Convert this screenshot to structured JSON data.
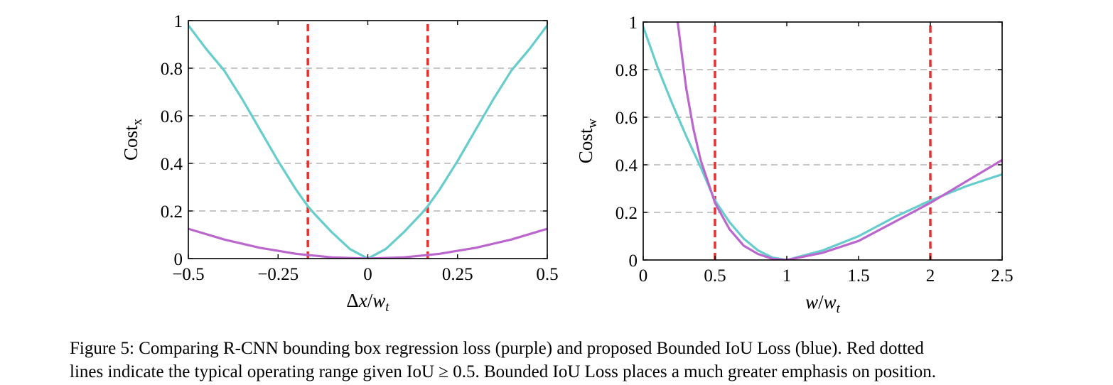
{
  "chart_data": [
    {
      "type": "line",
      "xlabel": "Δx/w_t",
      "ylabel": "Cost_x",
      "xlim": [
        -0.5,
        0.5
      ],
      "ylim": [
        0,
        1
      ],
      "x_ticks": [
        -0.5,
        -0.25,
        0,
        0.25,
        0.5
      ],
      "x_tick_labels": [
        "−0.5",
        "−0.25",
        "0",
        "0.25",
        "0.5"
      ],
      "y_ticks": [
        0,
        0.2,
        0.4,
        0.6,
        0.8,
        1
      ],
      "y_tick_labels": [
        "0",
        "0.2",
        "0.4",
        "0.6",
        "0.8",
        "1"
      ],
      "grid": "horizontal dashed",
      "series": [
        {
          "color": "#66cccc",
          "x": [
            -0.5,
            -0.45,
            -0.4,
            -0.35,
            -0.3,
            -0.25,
            -0.2,
            -0.167,
            -0.15,
            -0.1,
            -0.05,
            0,
            0.05,
            0.1,
            0.15,
            0.167,
            0.2,
            0.25,
            0.3,
            0.35,
            0.4,
            0.45,
            0.5
          ],
          "y": [
            0.98,
            0.88,
            0.79,
            0.67,
            0.54,
            0.41,
            0.29,
            0.22,
            0.19,
            0.11,
            0.04,
            0.0,
            0.04,
            0.11,
            0.19,
            0.22,
            0.29,
            0.41,
            0.54,
            0.67,
            0.79,
            0.88,
            0.98
          ]
        },
        {
          "color": "#bb66cc",
          "x": [
            -0.5,
            -0.4,
            -0.3,
            -0.2,
            -0.1,
            0,
            0.1,
            0.2,
            0.3,
            0.4,
            0.5
          ],
          "y": [
            0.125,
            0.08,
            0.045,
            0.02,
            0.005,
            0.0,
            0.005,
            0.02,
            0.045,
            0.08,
            0.125
          ]
        }
      ],
      "reference_lines": [
        {
          "axis": "x",
          "value": -0.167,
          "color": "#e8302e",
          "style": "dotted"
        },
        {
          "axis": "x",
          "value": 0.167,
          "color": "#e8302e",
          "style": "dotted"
        }
      ]
    },
    {
      "type": "line",
      "xlabel": "w/w_t",
      "ylabel": "Cost_w",
      "xlim": [
        0,
        2.5
      ],
      "ylim": [
        0,
        1
      ],
      "x_ticks": [
        0,
        0.5,
        1,
        1.5,
        2,
        2.5
      ],
      "x_tick_labels": [
        "0",
        "0.5",
        "1",
        "1.5",
        "2",
        "2.5"
      ],
      "y_ticks": [
        0,
        0.2,
        0.4,
        0.6,
        0.8,
        1
      ],
      "y_tick_labels": [
        "0",
        "0.2",
        "0.4",
        "0.6",
        "0.8",
        "1"
      ],
      "grid": "horizontal dashed",
      "series": [
        {
          "color": "#66cccc",
          "x": [
            0,
            0.1,
            0.2,
            0.3,
            0.4,
            0.5,
            0.6,
            0.7,
            0.8,
            0.9,
            1.0,
            1.25,
            1.5,
            1.75,
            2.0,
            2.25,
            2.5
          ],
          "y": [
            0.98,
            0.81,
            0.66,
            0.52,
            0.39,
            0.25,
            0.16,
            0.09,
            0.04,
            0.01,
            0.0,
            0.04,
            0.1,
            0.18,
            0.25,
            0.31,
            0.36
          ]
        },
        {
          "color": "#bb66cc",
          "x": [
            0.24,
            0.27,
            0.3,
            0.35,
            0.4,
            0.45,
            0.5,
            0.6,
            0.7,
            0.8,
            0.9,
            1.0,
            1.25,
            1.5,
            1.75,
            2.0,
            2.25,
            2.5
          ],
          "y": [
            1.0,
            0.86,
            0.72,
            0.55,
            0.42,
            0.33,
            0.24,
            0.13,
            0.06,
            0.025,
            0.005,
            0.0,
            0.03,
            0.08,
            0.16,
            0.24,
            0.33,
            0.42
          ]
        }
      ],
      "reference_lines": [
        {
          "axis": "x",
          "value": 0.5,
          "color": "#e8302e",
          "style": "dotted"
        },
        {
          "axis": "x",
          "value": 2.0,
          "color": "#e8302e",
          "style": "dotted"
        }
      ]
    }
  ],
  "caption": {
    "line1": "Figure 5: Comparing R-CNN bounding box regression loss (purple) and proposed Bounded IoU Loss (blue). Red dotted",
    "line2": "lines indicate the typical operating range given IoU ≥ 0.5. Bounded IoU Loss places a much greater emphasis on position."
  }
}
